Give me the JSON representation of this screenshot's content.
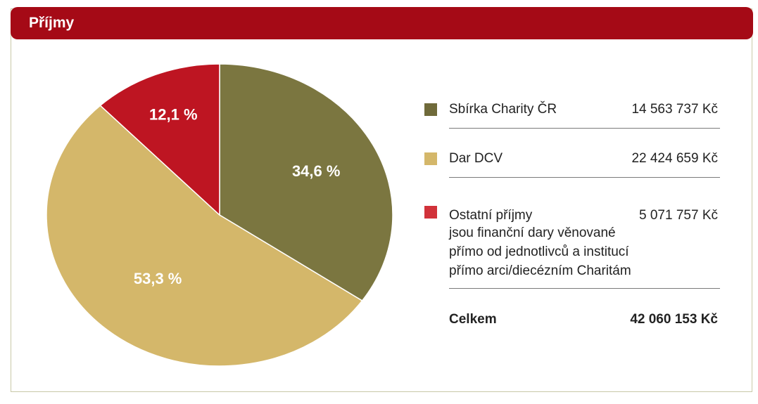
{
  "header": {
    "title": "Příjmy"
  },
  "chart_data": {
    "type": "pie",
    "slices": [
      {
        "label": "Sbírka Charity ČR",
        "percent": 34.6,
        "percent_label": "34,6 %",
        "amount": "14 563 737 Kč",
        "color": "#7b7640"
      },
      {
        "label": "Dar DCV",
        "percent": 53.3,
        "percent_label": "53,3 %",
        "amount": "22 424 659 Kč",
        "color": "#d4b76a"
      },
      {
        "label": "Ostatní příjmy",
        "percent": 12.1,
        "percent_label": "12,1 %",
        "amount": "5 071 757 Kč",
        "color": "#be1522"
      }
    ],
    "legend_position": "right"
  },
  "legend": {
    "items": [
      {
        "label": "Sbírka Charity ČR",
        "value": "14 563 737 Kč",
        "color": "#6f6a3a"
      },
      {
        "label": "Dar DCV",
        "value": "22 424 659 Kč",
        "color": "#d4b76a"
      },
      {
        "label": "Ostatní příjmy",
        "value": "5 071 757 Kč",
        "color": "#d1323a",
        "description": "jsou finanční dary věnované\npřímo od jednotlivců a institucí\npřímo arci/diecézním Charitám"
      }
    ],
    "total": {
      "label": "Celkem",
      "value": "42 060 153 Kč"
    }
  }
}
